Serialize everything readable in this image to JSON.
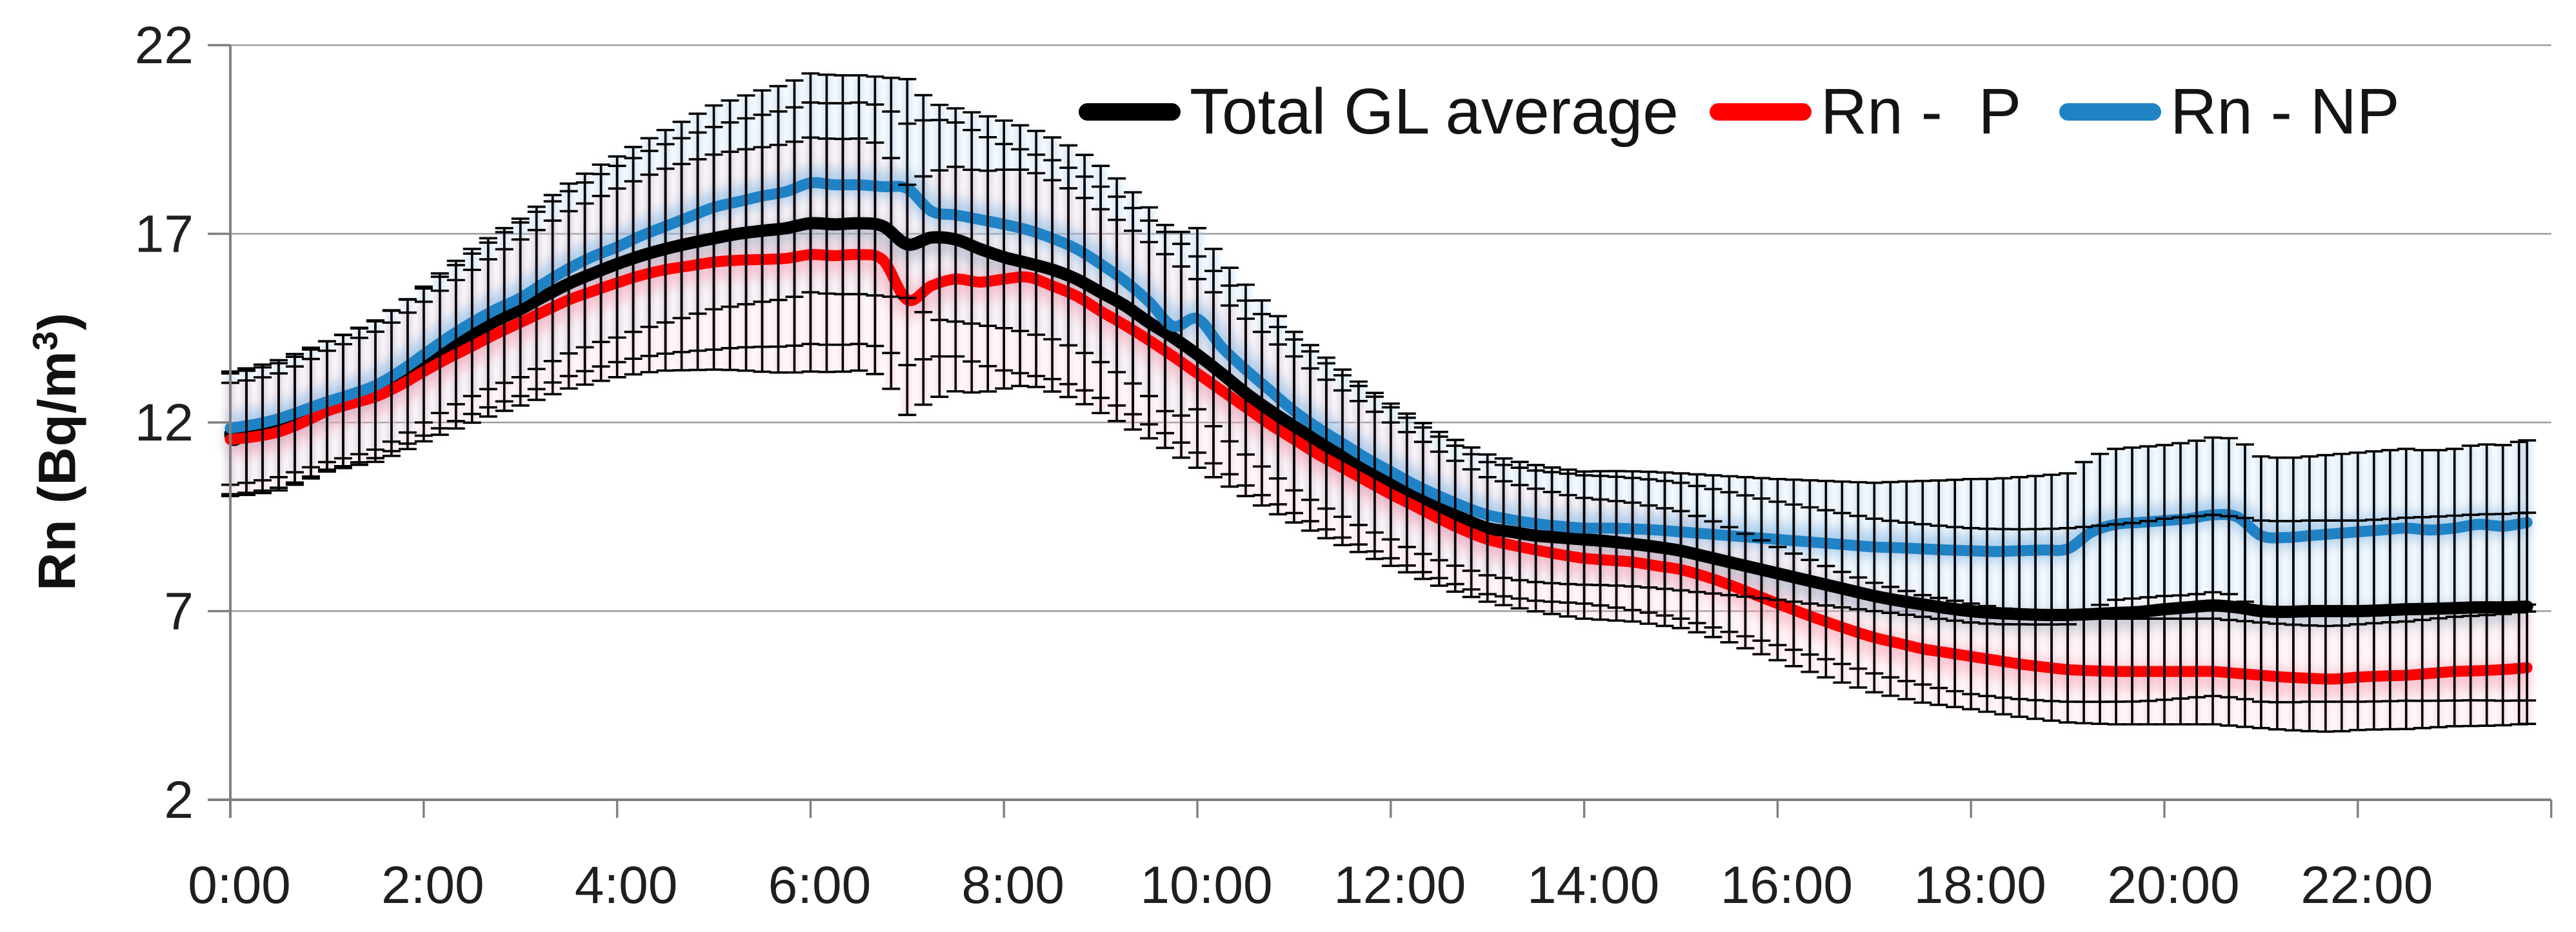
{
  "style": {
    "background": "#FFFFFF",
    "gridline_color": "#9C9C9C",
    "axis_color": "#7F7F7F",
    "label_color": "#1F1F1F",
    "error_bar_color": "#000000",
    "glow_blue": "#85B7E2",
    "glow_red": "#F5A3B4",
    "glow_black": "#94A2B8",
    "bar_wash_blue": "#A9CDE9",
    "bar_wash_red": "#F5BDC9"
  },
  "y_axis": {
    "title_main": "Rn (Bq/m",
    "title_sup": "3",
    "title_close": ")",
    "tick_values": [
      22,
      17,
      12,
      7,
      2
    ],
    "min": 2,
    "max": 22
  },
  "x_axis": {
    "tick_labels": [
      "0:00",
      "2:00",
      "4:00",
      "6:00",
      "8:00",
      "10:00",
      "12:00",
      "14:00",
      "16:00",
      "18:00",
      "20:00",
      "22:00"
    ],
    "tick_hours": [
      0,
      2,
      4,
      6,
      8,
      10,
      12,
      14,
      16,
      18,
      20,
      22
    ],
    "range_hours": [
      0,
      24
    ]
  },
  "legend": [
    {
      "label": "Total GL average",
      "color": "#000000"
    },
    {
      "label": "Rn -  P",
      "color": "#FE0000"
    },
    {
      "label": "Rn - NP",
      "color": "#1F82C5"
    }
  ],
  "chart_data": {
    "type": "line",
    "title": "",
    "xlabel": "",
    "ylabel": "Rn (Bq/m3)",
    "ylim": [
      2,
      22
    ],
    "y_ticks": [
      22,
      17,
      12,
      7,
      2
    ],
    "x_start_hour": 0.0,
    "x_step_hours": 0.25,
    "x_tick_labels": [
      "0:00",
      "2:00",
      "4:00",
      "6:00",
      "8:00",
      "10:00",
      "12:00",
      "14:00",
      "16:00",
      "18:00",
      "20:00",
      "22:00"
    ],
    "grid": "horizontal",
    "legend_position": "inside-top",
    "series": [
      {
        "name": "Total GL average",
        "color": "#000000",
        "values": [
          11.7,
          11.78,
          11.92,
          12.15,
          12.45,
          12.65,
          12.88,
          13.22,
          13.6,
          13.98,
          14.35,
          14.7,
          15.0,
          15.35,
          15.68,
          15.95,
          16.2,
          16.42,
          16.6,
          16.75,
          16.88,
          17.0,
          17.08,
          17.15,
          17.28,
          17.25,
          17.28,
          17.2,
          16.72,
          16.9,
          16.85,
          16.6,
          16.38,
          16.22,
          16.05,
          15.8,
          15.45,
          15.1,
          14.65,
          14.25,
          13.8,
          13.3,
          12.78,
          12.32,
          11.9,
          11.5,
          11.1,
          10.75,
          10.4,
          10.05,
          9.75,
          9.45,
          9.2,
          9.1,
          9.0,
          8.95,
          8.9,
          8.85,
          8.78,
          8.7,
          8.6,
          8.45,
          8.3,
          8.15,
          8.0,
          7.85,
          7.7,
          7.55,
          7.4,
          7.28,
          7.18,
          7.08,
          7.0,
          6.95,
          6.92,
          6.9,
          6.9,
          6.92,
          6.95,
          6.98,
          7.05,
          7.1,
          7.15,
          7.1,
          7.0,
          6.98,
          7.0,
          7.0,
          7.0,
          7.02,
          7.05,
          7.06,
          7.08,
          7.1,
          7.1,
          7.12
        ]
      },
      {
        "name": "Rn -  P",
        "color": "#FE0000",
        "values": [
          11.55,
          11.62,
          11.75,
          12.0,
          12.3,
          12.5,
          12.68,
          12.98,
          13.35,
          13.7,
          14.02,
          14.35,
          14.65,
          14.95,
          15.25,
          15.48,
          15.7,
          15.9,
          16.05,
          16.15,
          16.25,
          16.3,
          16.32,
          16.35,
          16.45,
          16.42,
          16.45,
          16.3,
          15.25,
          15.62,
          15.8,
          15.72,
          15.8,
          15.85,
          15.62,
          15.35,
          14.95,
          14.58,
          14.18,
          13.75,
          13.3,
          12.85,
          12.4,
          11.95,
          11.55,
          11.15,
          10.8,
          10.45,
          10.1,
          9.78,
          9.45,
          9.15,
          8.9,
          8.75,
          8.62,
          8.5,
          8.4,
          8.35,
          8.3,
          8.2,
          8.1,
          7.92,
          7.7,
          7.45,
          7.2,
          6.95,
          6.72,
          6.5,
          6.3,
          6.15,
          6.0,
          5.9,
          5.8,
          5.7,
          5.6,
          5.52,
          5.45,
          5.42,
          5.4,
          5.4,
          5.4,
          5.4,
          5.4,
          5.35,
          5.3,
          5.25,
          5.22,
          5.2,
          5.25,
          5.28,
          5.3,
          5.35,
          5.4,
          5.42,
          5.45,
          5.5
        ]
      },
      {
        "name": "Rn - NP",
        "color": "#1F82C5",
        "values": [
          11.85,
          11.95,
          12.1,
          12.32,
          12.55,
          12.75,
          12.98,
          13.35,
          13.8,
          14.25,
          14.65,
          15.0,
          15.3,
          15.7,
          16.08,
          16.4,
          16.65,
          16.95,
          17.2,
          17.45,
          17.7,
          17.85,
          18.0,
          18.12,
          18.35,
          18.3,
          18.3,
          18.25,
          18.2,
          17.6,
          17.5,
          17.38,
          17.25,
          17.1,
          16.88,
          16.6,
          16.2,
          15.75,
          15.2,
          14.55,
          14.75,
          14.0,
          13.4,
          12.85,
          12.3,
          11.85,
          11.45,
          11.05,
          10.7,
          10.35,
          10.05,
          9.78,
          9.55,
          9.42,
          9.32,
          9.25,
          9.2,
          9.2,
          9.18,
          9.15,
          9.1,
          9.05,
          9.0,
          8.95,
          8.9,
          8.85,
          8.8,
          8.75,
          8.7,
          8.68,
          8.65,
          8.62,
          8.6,
          8.58,
          8.6,
          8.62,
          8.65,
          9.1,
          9.3,
          9.35,
          9.4,
          9.45,
          9.55,
          9.5,
          9.0,
          8.95,
          9.0,
          9.05,
          9.1,
          9.15,
          9.2,
          9.15,
          9.2,
          9.3,
          9.25,
          9.35
        ]
      }
    ],
    "error_bars": {
      "description": "plus/minus half-width in Bq/m3 by hour of day, per series; bars drawn every 10 minutes",
      "hours": [
        0,
        1,
        2,
        3,
        4,
        5,
        6,
        7,
        8,
        9,
        10,
        11,
        12,
        13,
        14,
        15,
        16,
        17,
        18,
        19,
        20,
        21,
        22,
        23,
        24
      ],
      "half_width": {
        "Total GL average": [
          1.6,
          1.7,
          1.95,
          2.3,
          2.6,
          2.95,
          3.2,
          3.2,
          3.0,
          2.8,
          2.6,
          2.3,
          2.0,
          1.75,
          1.7,
          1.8,
          1.9,
          2.05,
          2.2,
          2.3,
          2.4,
          2.4,
          2.4,
          2.45,
          2.5
        ],
        "Rn -  P": [
          1.5,
          1.6,
          1.85,
          2.2,
          2.5,
          2.85,
          3.1,
          3.05,
          2.9,
          2.7,
          2.5,
          2.2,
          1.9,
          1.65,
          1.6,
          1.55,
          1.5,
          1.45,
          1.4,
          1.4,
          1.4,
          1.4,
          1.4,
          1.45,
          1.5
        ],
        "Rn - NP": [
          1.5,
          1.6,
          1.8,
          2.1,
          2.4,
          2.7,
          2.9,
          2.9,
          2.75,
          2.6,
          2.4,
          2.1,
          1.8,
          1.6,
          1.5,
          1.55,
          1.6,
          1.7,
          1.9,
          2.0,
          2.0,
          2.1,
          2.1,
          2.1,
          2.2
        ]
      }
    }
  }
}
